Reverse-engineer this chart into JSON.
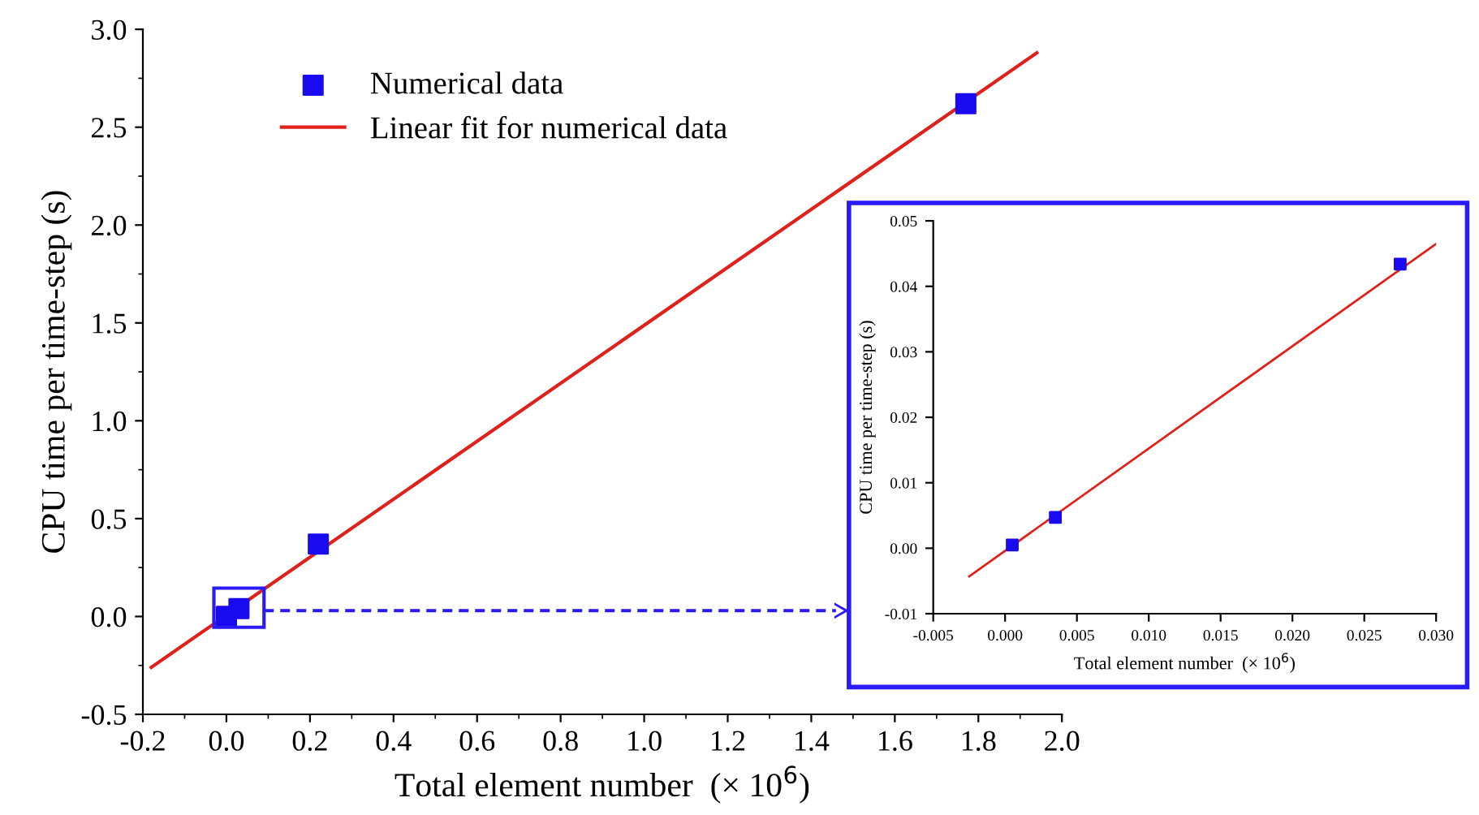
{
  "chart_data": [
    {
      "type": "scatter",
      "xlabel": "Total element number  (× 10$^{6}$)",
      "ylabel": "CPU time per time-step (s)",
      "xlim": [
        -0.2,
        2.0
      ],
      "ylim": [
        -0.5,
        3.0
      ],
      "xticks": [
        -0.2,
        {
          "value": 0,
          "label": "0.0"
        },
        0.2,
        0.4,
        0.6,
        0.8,
        {
          "value": 1,
          "label": "1.0"
        },
        1.2,
        1.4,
        1.6,
        1.8,
        {
          "value": 2,
          "label": "2.0"
        }
      ],
      "yticks": [
        -0.5,
        {
          "value": 0,
          "label": "0.0"
        },
        0.5,
        {
          "value": 1,
          "label": "1.0"
        },
        1.5,
        {
          "value": 2,
          "label": "2.0"
        },
        2.5,
        {
          "value": 3,
          "label": "3.0"
        }
      ],
      "legend": "top left",
      "grid": false,
      "series": [
        {
          "name": "Numerical data",
          "color": "#1a0af0",
          "marker": "square",
          "x": [
            0.0,
            0.0,
            0.03,
            0.22,
            1.77
          ],
          "values": [
            0.0,
            0.0,
            0.04,
            0.37,
            2.62
          ]
        },
        {
          "name": "Linear fit for numerical data",
          "type": "line",
          "color": "#e0201a",
          "marker": "none",
          "line_style": "solid",
          "x": [
            -0.18,
            1.94
          ],
          "values": [
            -0.26,
            2.88
          ]
        }
      ]
    },
    {
      "type": "scatter",
      "xlabel": "Total element number  (× 10$^{6}$)",
      "ylabel": "CPU time per time-step (s)",
      "xlim": [
        -0.005,
        0.03
      ],
      "ylim": [
        -0.01,
        0.05
      ],
      "xticks": [
        {
          "value": -0.005,
          "label": "-0.005"
        },
        {
          "value": 0.0,
          "label": "0.000"
        },
        {
          "value": 0.005,
          "label": "0.005"
        },
        {
          "value": 0.01,
          "label": "0.010"
        },
        {
          "value": 0.015,
          "label": "0.015"
        },
        {
          "value": 0.02,
          "label": "0.020"
        },
        {
          "value": 0.025,
          "label": "0.025"
        },
        {
          "value": 0.03,
          "label": "0.030"
        }
      ],
      "yticks": [
        {
          "value": -0.01,
          "label": "-0.01"
        },
        {
          "value": 0.0,
          "label": "0.00"
        },
        {
          "value": 0.01,
          "label": "0.01"
        },
        {
          "value": 0.02,
          "label": "0.02"
        },
        {
          "value": 0.03,
          "label": "0.03"
        },
        {
          "value": 0.04,
          "label": "0.04"
        },
        {
          "value": 0.05,
          "label": "0.05"
        }
      ],
      "grid": false,
      "series": [
        {
          "color": "#1a0af0",
          "marker": "square",
          "x": [
            0.0005,
            0.0035,
            0.0275
          ],
          "values": [
            0.0005,
            0.0047,
            0.0434
          ]
        },
        {
          "type": "line",
          "color": "#e0201a",
          "marker": "none",
          "line_style": "solid",
          "x": [
            -0.0025,
            0.03
          ],
          "values": [
            -0.0043,
            0.0465
          ]
        }
      ]
    }
  ]
}
